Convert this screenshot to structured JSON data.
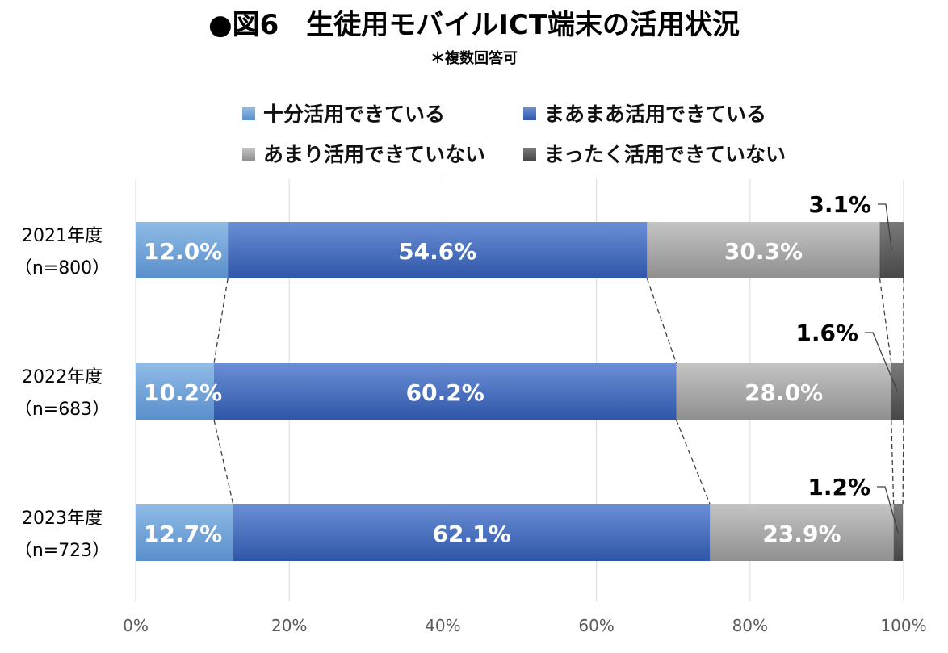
{
  "chart_data": {
    "type": "bar",
    "orientation": "horizontal",
    "stacked": "100%",
    "title": "●図6　生徒用モバイルICT端末の活用状況",
    "subtitle": "＊複数回答可",
    "categories": [
      {
        "year": "2021年度",
        "n": "（n=800）"
      },
      {
        "year": "2022年度",
        "n": "（n=683）"
      },
      {
        "year": "2023年度",
        "n": "（n=723）"
      }
    ],
    "series": [
      {
        "name": "十分活用できている",
        "color": "#6b9fd4",
        "values": [
          12.0,
          10.2,
          12.7
        ],
        "labels": [
          "12.0%",
          "10.2%",
          "12.7%"
        ]
      },
      {
        "name": "まあまあ活用できている",
        "color": "#3b63b6",
        "values": [
          54.6,
          60.2,
          62.1
        ],
        "labels": [
          "54.6%",
          "60.2%",
          "62.1%"
        ]
      },
      {
        "name": "あまり活用できていない",
        "color": "#a6a6a6",
        "values": [
          30.3,
          28.0,
          23.9
        ],
        "labels": [
          "30.3%",
          "28.0%",
          "23.9%"
        ]
      },
      {
        "name": "まったく活用できていない",
        "color": "#595959",
        "values": [
          3.1,
          1.6,
          1.2
        ],
        "labels": [
          "3.1%",
          "1.6%",
          "1.2%"
        ]
      }
    ],
    "x_ticks": [
      "0%",
      "20%",
      "40%",
      "60%",
      "80%",
      "100%"
    ],
    "xlim": [
      0,
      100
    ],
    "grid": true,
    "legend_position": "top",
    "connector_lines": "dashed"
  }
}
